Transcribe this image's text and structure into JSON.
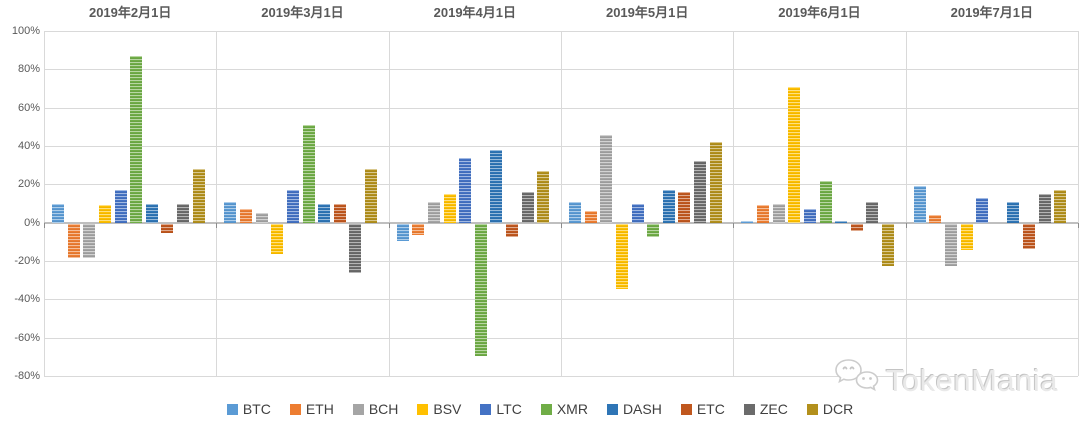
{
  "chart_data": {
    "type": "bar",
    "title": "",
    "categories": [
      "2019年2月1日",
      "2019年3月1日",
      "2019年4月1日",
      "2019年5月1日",
      "2019年6月1日",
      "2019年7月1日"
    ],
    "y_tick_labels": [
      "100%",
      "80%",
      "60%",
      "40%",
      "20%",
      "0%",
      "-20%",
      "-40%",
      "-60%",
      "-80%"
    ],
    "ylim": [
      -80,
      100
    ],
    "y_tick_step": 20,
    "grid": true,
    "legend_position": "bottom",
    "series": [
      {
        "name": "BTC",
        "color": "#5B9BD5",
        "values": [
          10,
          11,
          -9,
          11,
          1,
          19
        ]
      },
      {
        "name": "ETH",
        "color": "#ED7D31",
        "values": [
          -18,
          7,
          -6,
          6,
          9,
          4
        ]
      },
      {
        "name": "BCH",
        "color": "#A5A5A5",
        "values": [
          -18,
          5,
          11,
          46,
          10,
          -22
        ]
      },
      {
        "name": "BSV",
        "color": "#FFC000",
        "values": [
          9,
          -16,
          15,
          -34,
          71,
          -14
        ]
      },
      {
        "name": "LTC",
        "color": "#4472C4",
        "values": [
          17,
          17,
          34,
          10,
          7,
          13
        ]
      },
      {
        "name": "XMR",
        "color": "#70AD47",
        "values": [
          87,
          51,
          -69,
          -7,
          22,
          0
        ]
      },
      {
        "name": "DASH",
        "color": "#2E75B6",
        "values": [
          10,
          10,
          38,
          17,
          1,
          11
        ]
      },
      {
        "name": "ETC",
        "color": "#C0571E",
        "values": [
          -5,
          10,
          -7,
          16,
          -4,
          -13
        ]
      },
      {
        "name": "ZEC",
        "color": "#6B6B6B",
        "values": [
          10,
          -26,
          16,
          32,
          11,
          15
        ]
      },
      {
        "name": "DCR",
        "color": "#B3901C",
        "values": [
          28,
          28,
          27,
          42,
          -22,
          17
        ]
      }
    ]
  },
  "watermark": {
    "text": "TokenMania",
    "logo": "wechat-bubbles-icon"
  }
}
